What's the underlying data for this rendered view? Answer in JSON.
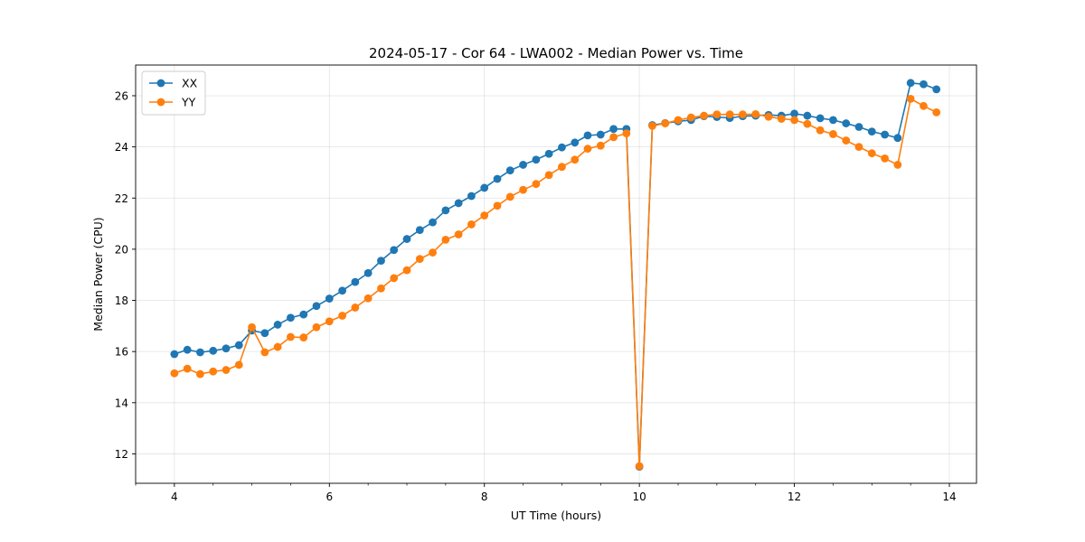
{
  "chart_data": {
    "type": "line",
    "title": "2024-05-17 - Cor 64 - LWA002 - Median Power vs. Time",
    "xlabel": "UT Time (hours)",
    "ylabel": "Median Power (CPU)",
    "xlim": [
      3.5,
      14.35
    ],
    "ylim": [
      10.85,
      27.2
    ],
    "xticks": [
      4,
      6,
      8,
      10,
      12,
      14
    ],
    "yticks": [
      12,
      14,
      16,
      18,
      20,
      22,
      24,
      26
    ],
    "grid": true,
    "legend_position": "top-left",
    "x": [
      4.0,
      4.167,
      4.333,
      4.5,
      4.667,
      4.833,
      5.0,
      5.167,
      5.333,
      5.5,
      5.667,
      5.833,
      6.0,
      6.167,
      6.333,
      6.5,
      6.667,
      6.833,
      7.0,
      7.167,
      7.333,
      7.5,
      7.667,
      7.833,
      8.0,
      8.167,
      8.333,
      8.5,
      8.667,
      8.833,
      9.0,
      9.167,
      9.333,
      9.5,
      9.667,
      9.833,
      10.0,
      10.167,
      10.333,
      10.5,
      10.667,
      10.833,
      11.0,
      11.167,
      11.333,
      11.5,
      11.667,
      11.833,
      12.0,
      12.167,
      12.333,
      12.5,
      12.667,
      12.833,
      13.0,
      13.167,
      13.333,
      13.5,
      13.667,
      13.833
    ],
    "series": [
      {
        "name": "XX",
        "color": "#1f77b4",
        "values": [
          15.9,
          16.07,
          15.97,
          16.03,
          16.12,
          16.25,
          16.82,
          16.72,
          17.05,
          17.32,
          17.45,
          17.78,
          18.07,
          18.38,
          18.72,
          19.07,
          19.55,
          19.97,
          20.4,
          20.75,
          21.05,
          21.52,
          21.8,
          22.08,
          22.4,
          22.75,
          23.08,
          23.3,
          23.5,
          23.73,
          23.98,
          24.17,
          24.45,
          24.48,
          24.7,
          24.7,
          11.5,
          24.85,
          24.93,
          25.0,
          25.05,
          25.2,
          25.17,
          25.13,
          25.2,
          25.22,
          25.25,
          25.22,
          25.3,
          25.22,
          25.12,
          25.05,
          24.92,
          24.78,
          24.6,
          24.48,
          24.35,
          26.5,
          26.45,
          26.25
        ]
      },
      {
        "name": "YY",
        "color": "#ff7f0e",
        "values": [
          15.15,
          15.33,
          15.12,
          15.22,
          15.28,
          15.48,
          16.95,
          15.97,
          16.18,
          16.57,
          16.55,
          16.95,
          17.18,
          17.4,
          17.72,
          18.08,
          18.47,
          18.87,
          19.18,
          19.62,
          19.87,
          20.37,
          20.58,
          20.97,
          21.32,
          21.7,
          22.05,
          22.32,
          22.55,
          22.9,
          23.22,
          23.5,
          23.93,
          24.05,
          24.38,
          24.53,
          11.52,
          24.82,
          24.92,
          25.05,
          25.15,
          25.22,
          25.27,
          25.27,
          25.27,
          25.28,
          25.18,
          25.1,
          25.05,
          24.9,
          24.65,
          24.5,
          24.25,
          24.0,
          23.75,
          23.55,
          23.3,
          25.88,
          25.6,
          25.35
        ]
      }
    ]
  }
}
